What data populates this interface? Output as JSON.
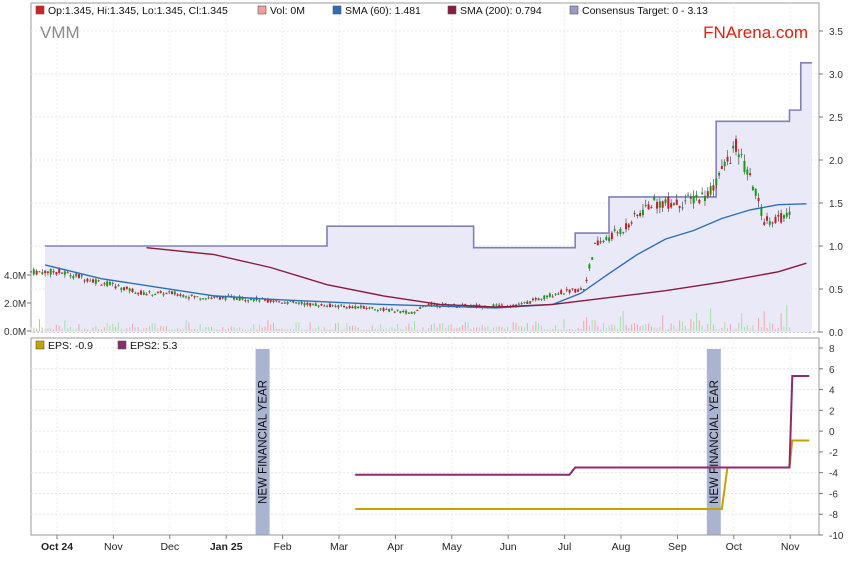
{
  "ticker": "VMM",
  "brand": "FNArena.com",
  "legend_top": [
    {
      "text": "Op:1.345, Hi:1.345, Lo:1.345, Cl:1.345",
      "color": "#d42020"
    },
    {
      "text": "Vol: 0M",
      "color": "#f0a0a0"
    },
    {
      "text": "SMA (60): 1.481",
      "color": "#2c6fb8"
    },
    {
      "text": "SMA (200): 0.794",
      "color": "#8b1a3c"
    },
    {
      "text": "Consensus Target: 0 - 3.13",
      "color": "#9a9ac8"
    }
  ],
  "legend_bottom": [
    {
      "text": "EPS: -0.9",
      "color": "#c8a000"
    },
    {
      "text": "EPS2: 5.3",
      "color": "#8b2a6e"
    }
  ],
  "financial_year_label": "NEW FINANCIAL YEAR",
  "chart_data": [
    {
      "type": "candlestick",
      "x_axis_labels": [
        "Oct 24",
        "Nov",
        "Dec",
        "Jan 25",
        "Feb",
        "Mar",
        "Apr",
        "May",
        "Jun",
        "Jul",
        "Aug",
        "Sep",
        "Oct",
        "Nov"
      ],
      "y_ticks": [
        "3.5",
        "3.0",
        "2.5",
        "2.0",
        "1.5",
        "1.0",
        "0.5",
        "0.0"
      ],
      "ylim": [
        0,
        3.5
      ],
      "volume_ticks": [
        "4.0M",
        "2.0M",
        "0.0M"
      ],
      "price_path": [
        [
          0,
          0.7
        ],
        [
          0.5,
          0.7
        ],
        [
          1,
          0.62
        ],
        [
          2,
          0.45
        ],
        [
          2.5,
          0.45
        ],
        [
          3,
          0.4
        ],
        [
          3.5,
          0.4
        ],
        [
          4,
          0.38
        ],
        [
          5,
          0.32
        ],
        [
          6,
          0.28
        ],
        [
          6.8,
          0.22
        ],
        [
          7,
          0.32
        ],
        [
          8,
          0.3
        ],
        [
          8.7,
          0.32
        ],
        [
          9.3,
          0.45
        ],
        [
          9.8,
          0.5
        ],
        [
          10,
          1.0
        ],
        [
          10.5,
          1.2
        ],
        [
          11,
          1.5
        ],
        [
          11.5,
          1.5
        ],
        [
          12,
          1.6
        ],
        [
          12.5,
          2.15
        ],
        [
          12.8,
          1.7
        ],
        [
          13,
          1.3
        ],
        [
          13.5,
          1.35
        ]
      ],
      "sma60": [
        [
          0,
          0.78
        ],
        [
          1,
          0.62
        ],
        [
          2,
          0.52
        ],
        [
          3,
          0.42
        ],
        [
          4,
          0.38
        ],
        [
          5,
          0.35
        ],
        [
          6,
          0.32
        ],
        [
          7,
          0.3
        ],
        [
          8,
          0.28
        ],
        [
          9,
          0.32
        ],
        [
          9.5,
          0.45
        ],
        [
          10,
          0.68
        ],
        [
          10.5,
          0.9
        ],
        [
          11,
          1.08
        ],
        [
          11.5,
          1.18
        ],
        [
          12,
          1.32
        ],
        [
          12.5,
          1.42
        ],
        [
          13,
          1.48
        ],
        [
          13.5,
          1.49
        ]
      ],
      "sma200": [
        [
          1.8,
          0.98
        ],
        [
          3,
          0.9
        ],
        [
          4,
          0.75
        ],
        [
          5,
          0.55
        ],
        [
          6,
          0.42
        ],
        [
          7,
          0.32
        ],
        [
          8,
          0.29
        ],
        [
          9,
          0.32
        ],
        [
          10,
          0.4
        ],
        [
          11,
          0.48
        ],
        [
          12,
          0.58
        ],
        [
          13,
          0.7
        ],
        [
          13.5,
          0.8
        ]
      ],
      "consensus_target": [
        [
          0,
          1.0
        ],
        [
          5,
          1.0
        ],
        [
          5,
          1.23
        ],
        [
          7.6,
          1.23
        ],
        [
          7.6,
          0.98
        ],
        [
          9.4,
          0.98
        ],
        [
          9.4,
          1.15
        ],
        [
          10,
          1.15
        ],
        [
          10,
          1.57
        ],
        [
          11.9,
          1.57
        ],
        [
          11.9,
          2.45
        ],
        [
          13.2,
          2.45
        ],
        [
          13.2,
          2.58
        ],
        [
          13.4,
          2.58
        ],
        [
          13.4,
          3.13
        ],
        [
          13.6,
          3.13
        ]
      ]
    },
    {
      "type": "line",
      "x_axis_labels": [
        "Oct 24",
        "Nov",
        "Dec",
        "Jan 25",
        "Feb",
        "Mar",
        "Apr",
        "May",
        "Jun",
        "Jul",
        "Aug",
        "Sep",
        "Oct",
        "Nov"
      ],
      "y_ticks": [
        "8",
        "6",
        "4",
        "2",
        "0",
        "-2",
        "-4",
        "-6",
        "-8",
        "-10"
      ],
      "ylim": [
        -10,
        8
      ],
      "series": [
        {
          "name": "EPS",
          "color": "#c8a000",
          "points": [
            [
              5.5,
              -7.5
            ],
            [
              12,
              -7.5
            ],
            [
              12.1,
              -3.5
            ],
            [
              13.2,
              -3.5
            ],
            [
              13.25,
              -0.9
            ],
            [
              13.55,
              -0.9
            ]
          ]
        },
        {
          "name": "EPS2",
          "color": "#8b2a6e",
          "points": [
            [
              5.5,
              -4.2
            ],
            [
              9.3,
              -4.2
            ],
            [
              9.4,
              -3.5
            ],
            [
              13.2,
              -3.5
            ],
            [
              13.25,
              5.3
            ],
            [
              13.55,
              5.3
            ]
          ]
        }
      ],
      "financial_year_markers": [
        "Feb",
        "Oct"
      ]
    }
  ]
}
